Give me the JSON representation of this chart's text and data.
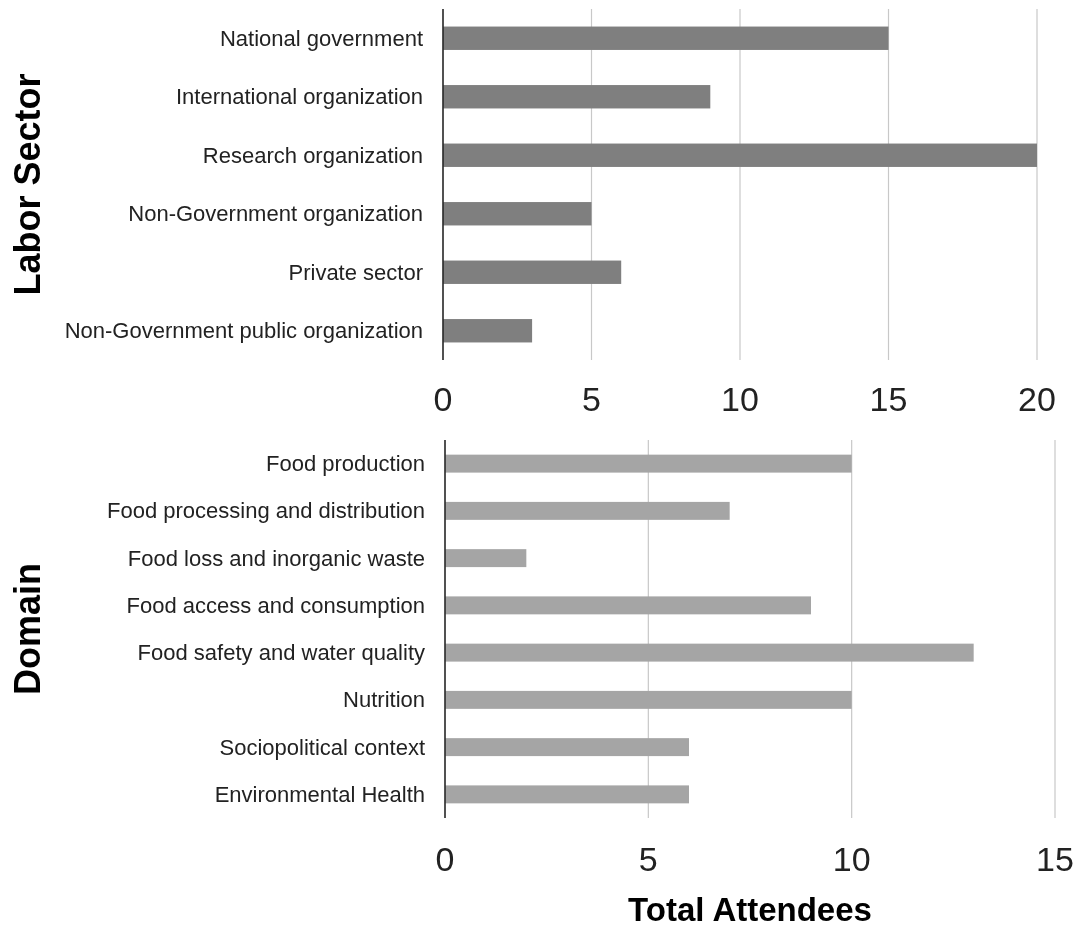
{
  "chart_data": [
    {
      "type": "bar",
      "orientation": "horizontal",
      "ylabel": "Labor Sector",
      "categories": [
        "National government",
        "International organization",
        "Research organization",
        "Non-Government organization",
        "Private sector",
        "Non-Government public organization"
      ],
      "values": [
        15,
        9,
        20,
        5,
        6,
        3
      ],
      "color": "#7f7f7f",
      "xlim": [
        0,
        20
      ],
      "xticks": [
        0,
        5,
        10,
        15,
        20
      ],
      "grid": "x"
    },
    {
      "type": "bar",
      "orientation": "horizontal",
      "ylabel": "Domain",
      "xlabel": "Total Attendees",
      "categories": [
        "Food production",
        "Food processing and distribution",
        "Food loss and inorganic waste",
        "Food access and consumption",
        "Food safety and water quality",
        "Nutrition",
        "Sociopolitical context",
        "Environmental Health"
      ],
      "values": [
        10,
        7,
        2,
        9,
        13,
        10,
        6,
        6
      ],
      "color": "#a5a5a5",
      "xlim": [
        0,
        15
      ],
      "xticks": [
        0,
        5,
        10,
        15
      ],
      "grid": "x"
    }
  ]
}
